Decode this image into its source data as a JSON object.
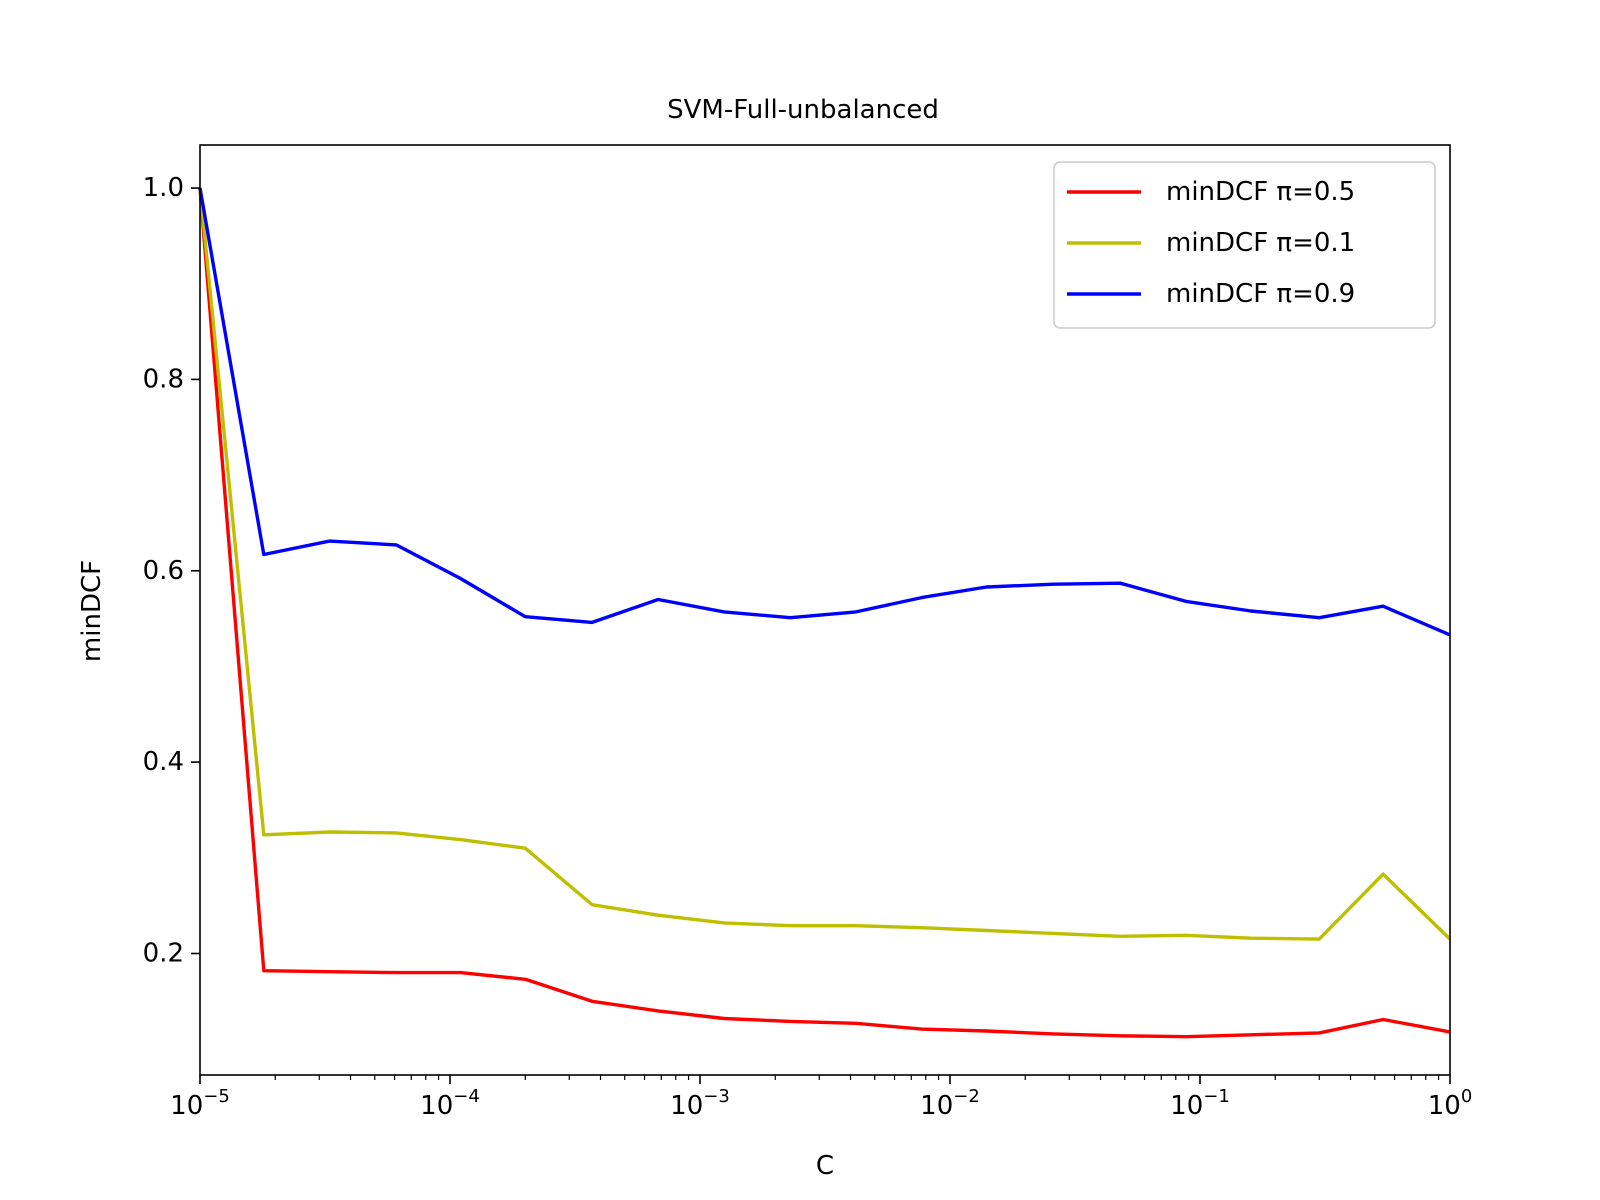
{
  "chart_data": {
    "type": "line",
    "title": "SVM-Full-unbalanced",
    "xlabel": "C",
    "ylabel": "minDCF",
    "xscale": "log",
    "xlim": [
      1e-05,
      1
    ],
    "ylim": [
      0.073,
      1.045
    ],
    "grid": false,
    "legend_position": "top-right",
    "x": [
      1e-05,
      1.8e-05,
      3.3e-05,
      6.1e-05,
      0.00011,
      0.0002,
      0.00037,
      0.00068,
      0.00125,
      0.0023,
      0.0042,
      0.0077,
      0.014,
      0.026,
      0.048,
      0.088,
      0.16,
      0.3,
      0.54,
      1
    ],
    "xticks": [
      {
        "base": "10",
        "exp": "−5",
        "value": 1e-05
      },
      {
        "base": "10",
        "exp": "−4",
        "value": 0.0001
      },
      {
        "base": "10",
        "exp": "−3",
        "value": 0.001
      },
      {
        "base": "10",
        "exp": "−2",
        "value": 0.01
      },
      {
        "base": "10",
        "exp": "−1",
        "value": 0.1
      },
      {
        "base": "10",
        "exp": "0",
        "value": 1
      }
    ],
    "yticks": [
      {
        "label": "0.2",
        "value": 0.2
      },
      {
        "label": "0.4",
        "value": 0.4
      },
      {
        "label": "0.6",
        "value": 0.6
      },
      {
        "label": "0.8",
        "value": 0.8
      },
      {
        "label": "1.0",
        "value": 1.0
      }
    ],
    "series": [
      {
        "name": "minDCF π=0.5",
        "color": "#ff0000",
        "values": [
          1.0,
          0.182,
          0.181,
          0.18,
          0.18,
          0.173,
          0.15,
          0.14,
          0.132,
          0.129,
          0.127,
          0.121,
          0.119,
          0.116,
          0.114,
          0.113,
          0.115,
          0.117,
          0.131,
          0.118
        ]
      },
      {
        "name": "minDCF π=0.1",
        "color": "#bfbf00",
        "values": [
          1.0,
          0.324,
          0.327,
          0.326,
          0.319,
          0.31,
          0.251,
          0.24,
          0.232,
          0.229,
          0.229,
          0.227,
          0.224,
          0.221,
          0.218,
          0.219,
          0.216,
          0.215,
          0.283,
          0.215
        ]
      },
      {
        "name": "minDCF π=0.9",
        "color": "#0000ff",
        "values": [
          1.0,
          0.617,
          0.631,
          0.627,
          0.592,
          0.552,
          0.546,
          0.57,
          0.557,
          0.551,
          0.557,
          0.572,
          0.583,
          0.586,
          0.587,
          0.568,
          0.558,
          0.551,
          0.563,
          0.533
        ]
      }
    ]
  }
}
